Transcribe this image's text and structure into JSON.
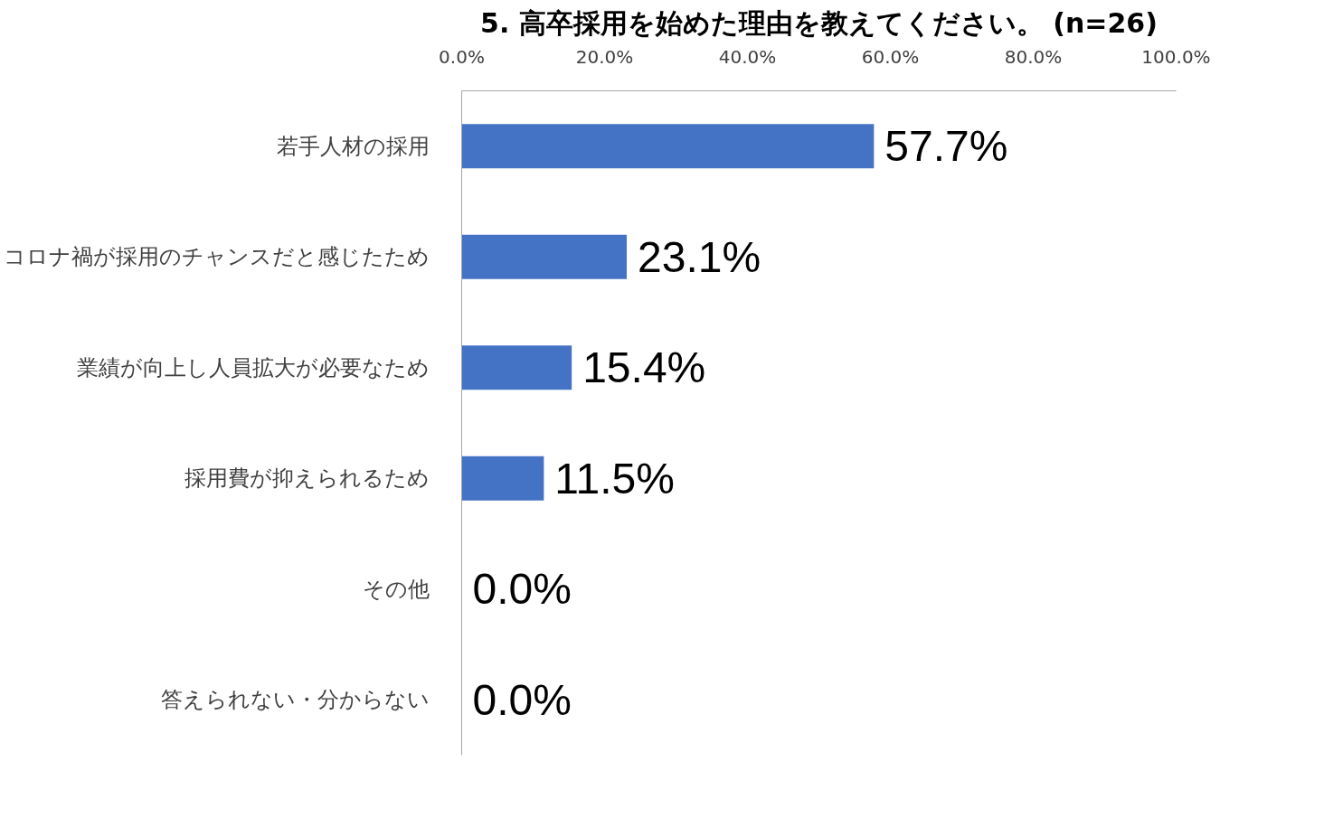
{
  "chart_data": {
    "type": "bar",
    "orientation": "horizontal",
    "title": "5. 高卒採用を始めた理由を教えてください。 (n=26)",
    "categories": [
      "若手人材の採用",
      "コロナ禍が採用のチャンスだと感じたため",
      "業績が向上し人員拡大が必要なため",
      "採用費が抑えられるため",
      "その他",
      "答えられない・分からない"
    ],
    "series": [
      {
        "color": "#4472c4",
        "values": [
          57.7,
          23.1,
          15.4,
          11.5,
          0.0,
          0.0
        ],
        "value_labels": [
          "57.7%",
          "23.1%",
          "15.4%",
          "11.5%",
          "0.0%",
          "0.0%"
        ]
      }
    ],
    "xlim": [
      0,
      100
    ],
    "xticks": [
      {
        "value": 0,
        "label": "0.0%"
      },
      {
        "value": 20,
        "label": "20.0%"
      },
      {
        "value": 40,
        "label": "40.0%"
      },
      {
        "value": 60,
        "label": "60.0%"
      },
      {
        "value": 80,
        "label": "80.0%"
      },
      {
        "value": 100,
        "label": "100.0%"
      }
    ],
    "grid": false
  }
}
